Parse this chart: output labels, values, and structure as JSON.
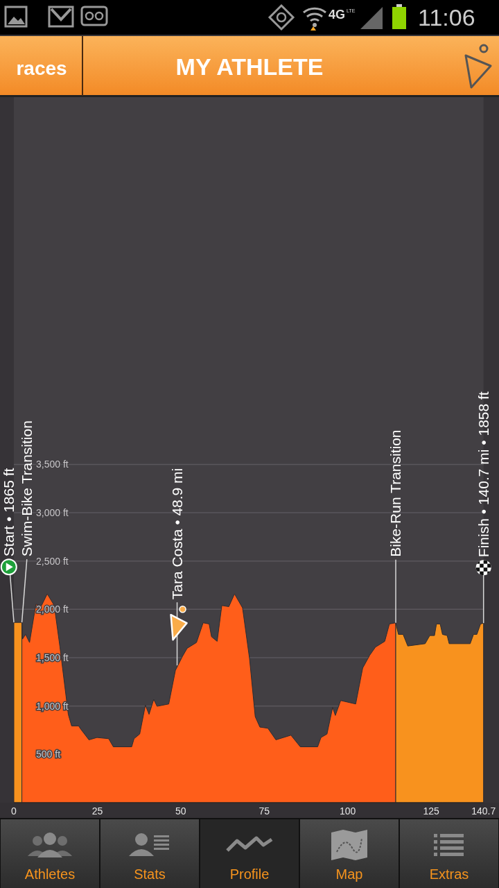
{
  "chart_data": {
    "type": "area",
    "title": "MY ATHLETE",
    "xlim": [
      0,
      140.7
    ],
    "xticks": [
      0,
      25,
      50,
      75,
      100,
      125,
      140.7
    ],
    "ylim": [
      0,
      7300
    ],
    "yticks": [
      {
        "value": 500,
        "label": "500 ft"
      },
      {
        "value": 1000,
        "label": "1,000 ft"
      },
      {
        "value": 1500,
        "label": "1,500 ft"
      },
      {
        "value": 2000,
        "label": "2,000 ft"
      },
      {
        "value": 2500,
        "label": "2,500 ft"
      },
      {
        "value": 3000,
        "label": "3,000 ft"
      },
      {
        "value": 3500,
        "label": "3,500 ft"
      }
    ],
    "grid": "y",
    "series": [
      {
        "color": "#f8921e",
        "x": [
          0,
          2.4
        ],
        "values": [
          1865,
          1865
        ]
      },
      {
        "color": "#ff5e1a",
        "x": [
          2.4,
          2.6,
          3.5,
          4.7,
          6.6,
          8.3,
          10.0,
          12.1,
          13.8,
          16.3,
          17.3,
          19.4,
          20.1,
          22.5,
          24.9,
          28.4,
          29.8,
          35.3,
          36.0,
          37.7,
          39.4,
          40.5,
          41.9,
          42.9,
          46.4,
          48.4,
          50.5,
          51.9,
          54.7,
          56.7,
          58.5,
          59.2,
          60.9,
          62.3,
          64.4,
          66.1,
          68.5,
          70.6,
          72.3,
          73.7,
          76.1,
          78.5,
          83.0,
          85.8,
          91.0,
          92.0,
          93.8,
          95.5,
          96.3,
          97.9,
          102.4,
          104.5,
          106.6,
          108.3,
          111.1,
          112.5,
          114.4
        ],
        "values": [
          1865,
          1693,
          1741,
          1657,
          2053,
          2040,
          2160,
          2040,
          1611,
          914,
          794,
          794,
          758,
          650,
          674,
          662,
          578,
          578,
          662,
          710,
          1009,
          914,
          1069,
          997,
          1021,
          1369,
          1513,
          1597,
          1657,
          1861,
          1849,
          1717,
          1669,
          2040,
          2028,
          2160,
          2016,
          1489,
          890,
          782,
          770,
          650,
          698,
          578,
          578,
          674,
          710,
          986,
          902,
          1057,
          1021,
          1393,
          1525,
          1609,
          1669,
          1849,
          1861
        ]
      },
      {
        "color": "#f8921e",
        "x": [
          114.4,
          115.2,
          116.6,
          118.0,
          123.2,
          124.6,
          126.0,
          126.6,
          127.7,
          128.4,
          129.8,
          130.4,
          136.7,
          137.7,
          138.7,
          139.8,
          140.7
        ],
        "values": [
          1861,
          1741,
          1741,
          1621,
          1645,
          1729,
          1729,
          1849,
          1849,
          1741,
          1729,
          1645,
          1645,
          1741,
          1741,
          1849,
          1858
        ]
      }
    ],
    "annotations": [
      {
        "text": "Start • 1865 ft",
        "x": 0,
        "y": 1865
      },
      {
        "text": "Swim-Bike Transition",
        "x": 2.4,
        "y": 1865
      },
      {
        "text": "Tara Costa • 48.9 mi",
        "x": 48.9,
        "y": 1420
      },
      {
        "text": "Bike-Run Transition",
        "x": 114.4,
        "y": 1861
      },
      {
        "text": "Finish • 140.7 mi • 1858 ft",
        "x": 140.7,
        "y": 1858
      },
      "races",
      "11:06",
      "4G",
      "LTE",
      "Athletes",
      "Stats",
      "Profile",
      "Map",
      "Extras"
    ]
  }
}
